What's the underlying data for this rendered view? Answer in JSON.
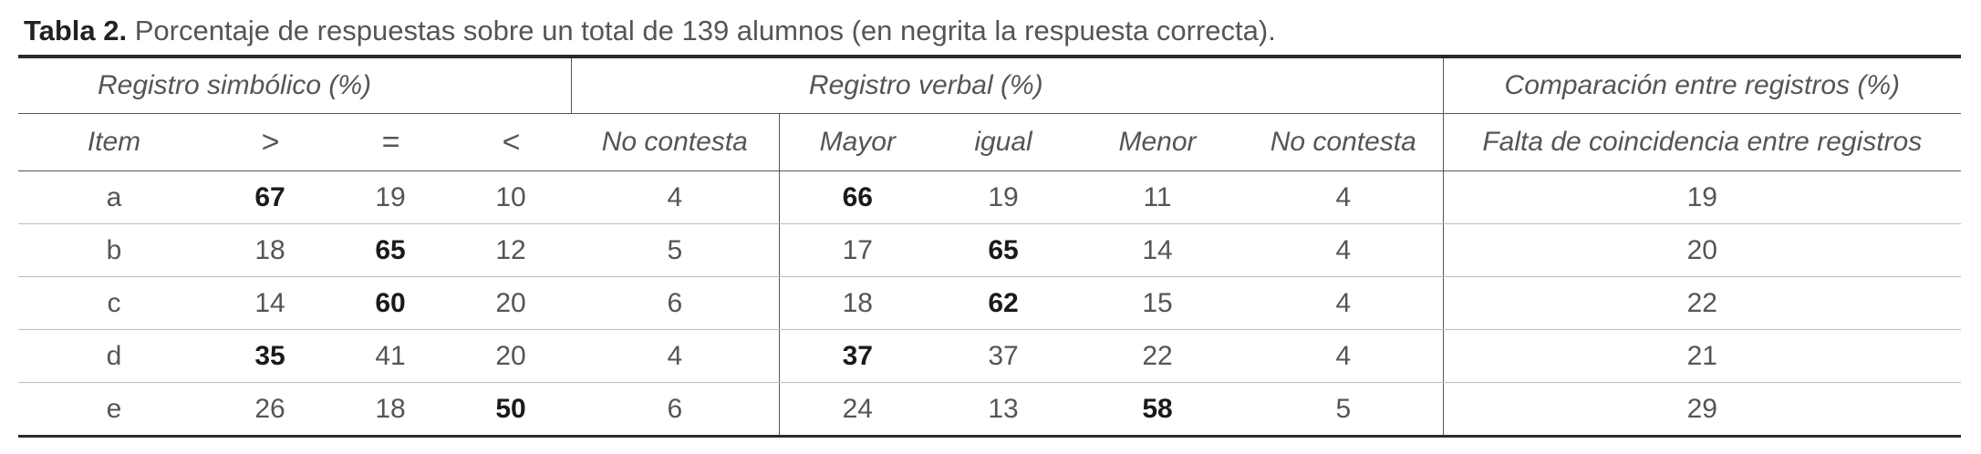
{
  "caption": {
    "label": "Tabla 2.",
    "text": " Porcentaje de respuestas sobre un total de 139 alumnos (en negrita la respuesta correcta)."
  },
  "groups": {
    "symbolic": "Registro simbólico (%)",
    "verbal": "Registro verbal (%)",
    "comparison": "Comparación entre registros (%)"
  },
  "columns": {
    "item": "Item",
    "greater_sym": ">",
    "equal_sym": "=",
    "less_sym": "<",
    "no_answer_sym": "No contesta",
    "greater_verbal": "Mayor",
    "equal_verbal": "igual",
    "less_verbal": "Menor",
    "no_answer_verbal": "No contesta",
    "mismatch": "Falta de coincidencia entre registros"
  },
  "rows": [
    {
      "item": "a",
      "gt": "67",
      "eq": "19",
      "lt": "10",
      "nc_s": "4",
      "mayor": "66",
      "igual": "19",
      "menor": "11",
      "nc_v": "4",
      "mismatch": "19"
    },
    {
      "item": "b",
      "gt": "18",
      "eq": "65",
      "lt": "12",
      "nc_s": "5",
      "mayor": "17",
      "igual": "65",
      "menor": "14",
      "nc_v": "4",
      "mismatch": "20"
    },
    {
      "item": "c",
      "gt": "14",
      "eq": "60",
      "lt": "20",
      "nc_s": "6",
      "mayor": "18",
      "igual": "62",
      "menor": "15",
      "nc_v": "4",
      "mismatch": "22"
    },
    {
      "item": "d",
      "gt": "35",
      "eq": "41",
      "lt": "20",
      "nc_s": "4",
      "mayor": "37",
      "igual": "37",
      "menor": "22",
      "nc_v": "4",
      "mismatch": "21"
    },
    {
      "item": "e",
      "gt": "26",
      "eq": "18",
      "lt": "50",
      "nc_s": "6",
      "mayor": "24",
      "igual": "13",
      "menor": "58",
      "nc_v": "5",
      "mismatch": "29"
    }
  ]
}
